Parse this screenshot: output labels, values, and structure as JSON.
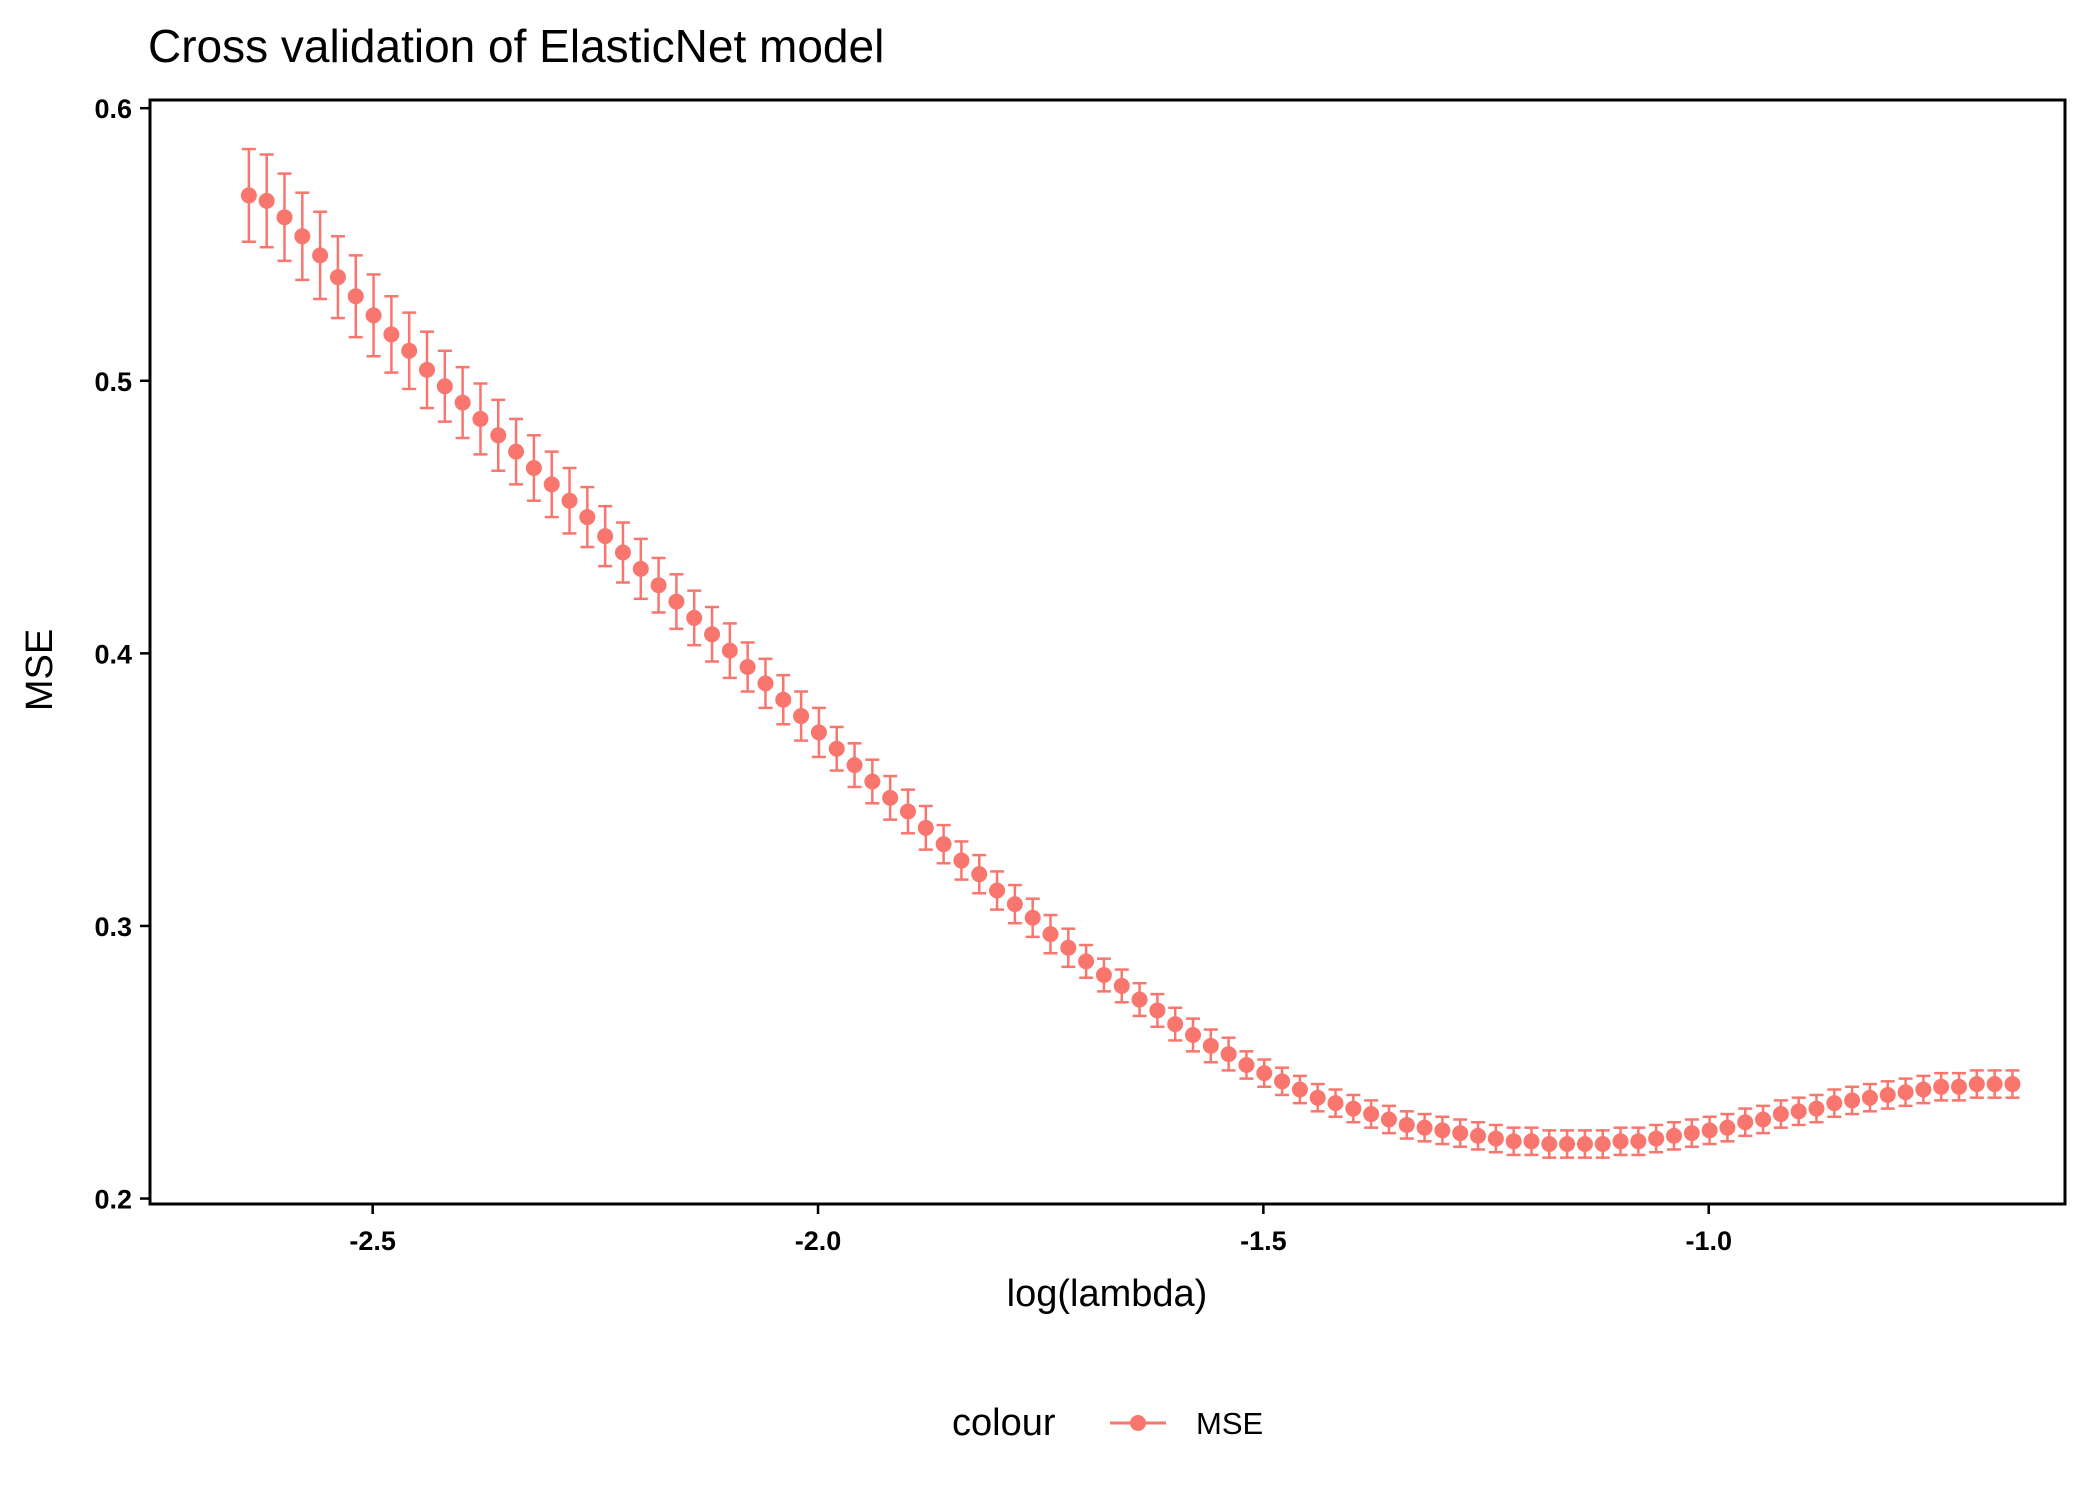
{
  "chart_data": {
    "type": "scatter",
    "title": "Cross validation of ElasticNet model",
    "xlabel": "log(lambda)",
    "ylabel": "MSE",
    "xlim": [
      -2.75,
      -0.6
    ],
    "ylim": [
      0.198,
      0.603
    ],
    "x_ticks": [
      -2.5,
      -2.0,
      -1.5,
      -1.0
    ],
    "x_tick_labels": [
      "-2.5",
      "-2.0",
      "-1.5",
      "-1.0"
    ],
    "y_ticks": [
      0.2,
      0.3,
      0.4,
      0.5,
      0.6
    ],
    "y_tick_labels": [
      "0.2",
      "0.3",
      "0.4",
      "0.5",
      "0.6"
    ],
    "grid": false,
    "legend": {
      "title": "colour",
      "position": "bottom",
      "entries": [
        "MSE"
      ]
    },
    "series": [
      {
        "name": "MSE",
        "color": "#F8766D",
        "x": [
          -2.639,
          -2.619,
          -2.599,
          -2.579,
          -2.559,
          -2.539,
          -2.519,
          -2.499,
          -2.479,
          -2.459,
          -2.439,
          -2.419,
          -2.399,
          -2.379,
          -2.359,
          -2.339,
          -2.319,
          -2.299,
          -2.279,
          -2.259,
          -2.239,
          -2.219,
          -2.199,
          -2.179,
          -2.159,
          -2.139,
          -2.119,
          -2.099,
          -2.079,
          -2.059,
          -2.039,
          -2.019,
          -1.999,
          -1.979,
          -1.959,
          -1.939,
          -1.919,
          -1.899,
          -1.879,
          -1.859,
          -1.839,
          -1.819,
          -1.799,
          -1.779,
          -1.759,
          -1.739,
          -1.719,
          -1.699,
          -1.679,
          -1.659,
          -1.639,
          -1.619,
          -1.599,
          -1.579,
          -1.559,
          -1.539,
          -1.519,
          -1.499,
          -1.479,
          -1.459,
          -1.439,
          -1.419,
          -1.399,
          -1.379,
          -1.359,
          -1.339,
          -1.319,
          -1.299,
          -1.279,
          -1.259,
          -1.239,
          -1.219,
          -1.199,
          -1.179,
          -1.159,
          -1.139,
          -1.119,
          -1.099,
          -1.079,
          -1.059,
          -1.039,
          -1.019,
          -0.999,
          -0.979,
          -0.959,
          -0.939,
          -0.919,
          -0.899,
          -0.879,
          -0.859,
          -0.839,
          -0.819,
          -0.799,
          -0.779,
          -0.759,
          -0.739,
          -0.719,
          -0.699,
          -0.679,
          -0.659
        ],
        "y": [
          0.568,
          0.566,
          0.56,
          0.553,
          0.546,
          0.538,
          0.531,
          0.524,
          0.517,
          0.511,
          0.504,
          0.498,
          0.492,
          0.486,
          0.48,
          0.474,
          0.468,
          0.462,
          0.456,
          0.45,
          0.443,
          0.437,
          0.431,
          0.425,
          0.419,
          0.413,
          0.407,
          0.401,
          0.395,
          0.389,
          0.383,
          0.377,
          0.371,
          0.365,
          0.359,
          0.353,
          0.347,
          0.342,
          0.336,
          0.33,
          0.324,
          0.319,
          0.313,
          0.308,
          0.303,
          0.297,
          0.292,
          0.287,
          0.282,
          0.278,
          0.273,
          0.269,
          0.264,
          0.26,
          0.256,
          0.253,
          0.249,
          0.246,
          0.243,
          0.24,
          0.237,
          0.235,
          0.233,
          0.231,
          0.229,
          0.227,
          0.226,
          0.225,
          0.224,
          0.223,
          0.222,
          0.221,
          0.221,
          0.22,
          0.22,
          0.22,
          0.22,
          0.221,
          0.221,
          0.222,
          0.223,
          0.224,
          0.225,
          0.226,
          0.228,
          0.229,
          0.231,
          0.232,
          0.233,
          0.235,
          0.236,
          0.237,
          0.238,
          0.239,
          0.24,
          0.241,
          0.241,
          0.242,
          0.242,
          0.242
        ],
        "error": [
          0.017,
          0.017,
          0.016,
          0.016,
          0.016,
          0.015,
          0.015,
          0.015,
          0.014,
          0.014,
          0.014,
          0.013,
          0.013,
          0.013,
          0.013,
          0.012,
          0.012,
          0.012,
          0.012,
          0.011,
          0.011,
          0.011,
          0.011,
          0.01,
          0.01,
          0.01,
          0.01,
          0.01,
          0.009,
          0.009,
          0.009,
          0.009,
          0.009,
          0.008,
          0.008,
          0.008,
          0.008,
          0.008,
          0.008,
          0.007,
          0.007,
          0.007,
          0.007,
          0.007,
          0.007,
          0.007,
          0.007,
          0.006,
          0.006,
          0.006,
          0.006,
          0.006,
          0.006,
          0.006,
          0.006,
          0.006,
          0.005,
          0.005,
          0.005,
          0.005,
          0.005,
          0.005,
          0.005,
          0.005,
          0.005,
          0.005,
          0.005,
          0.005,
          0.005,
          0.005,
          0.005,
          0.005,
          0.005,
          0.005,
          0.005,
          0.005,
          0.005,
          0.005,
          0.005,
          0.005,
          0.005,
          0.005,
          0.005,
          0.005,
          0.005,
          0.005,
          0.005,
          0.005,
          0.005,
          0.005,
          0.005,
          0.005,
          0.005,
          0.005,
          0.005,
          0.005,
          0.005,
          0.005,
          0.005,
          0.005
        ]
      }
    ]
  }
}
